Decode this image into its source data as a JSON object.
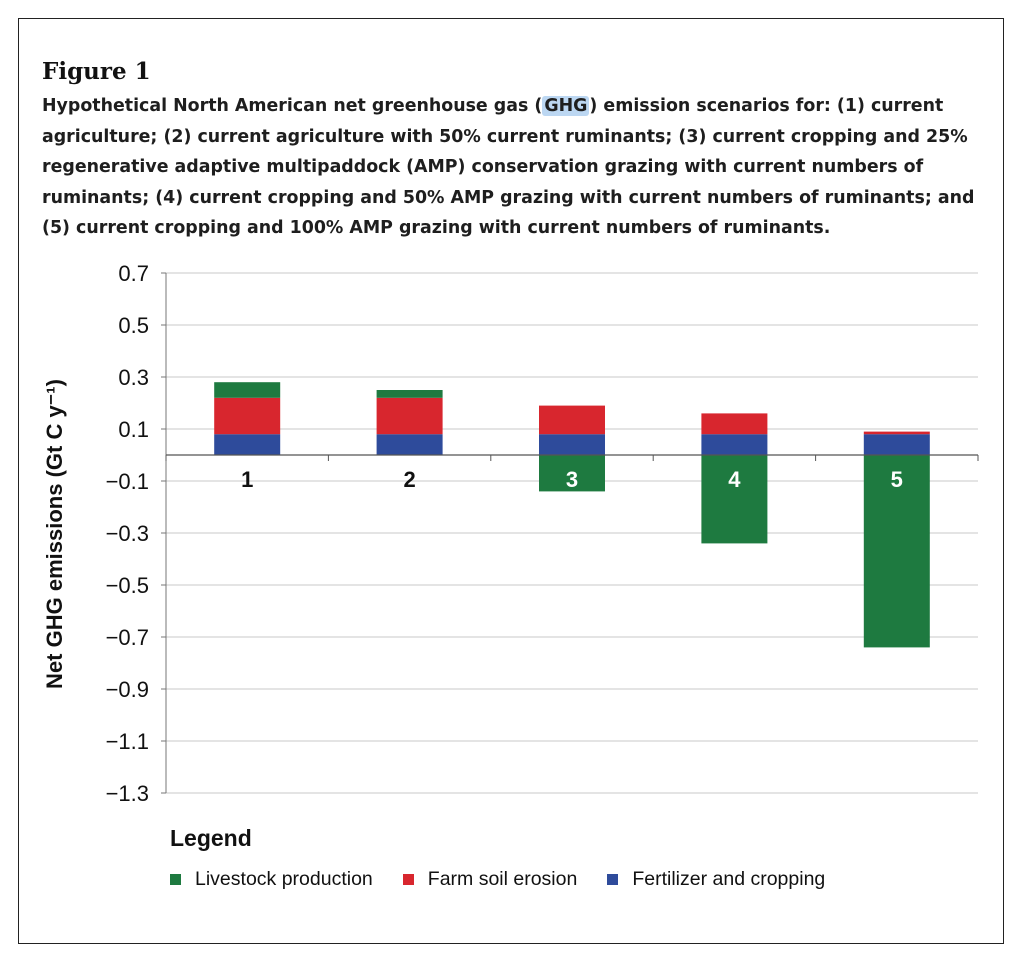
{
  "figure": {
    "label": "Figure 1",
    "caption_pre": "Hypothetical North American net greenhouse gas (",
    "caption_highlight": "GHG",
    "caption_post": ") emission scenarios for: (1) current agriculture; (2) current agriculture with 50% current ruminants; (3) current cropping and 25% regenerative adaptive multipaddock (AMP) conservation grazing with current numbers of ruminants; (4) current cropping and 50% AMP grazing with current numbers of ruminants; and (5) current cropping and 100% AMP grazing with current numbers of ruminants."
  },
  "legend": {
    "title": "Legend",
    "items": [
      {
        "label": "Livestock production",
        "color": "#1e7a40"
      },
      {
        "label": "Farm soil erosion",
        "color": "#d8262e"
      },
      {
        "label": "Fertilizer and cropping",
        "color": "#2e4b9b"
      }
    ]
  },
  "chart_data": {
    "type": "bar",
    "stacked": true,
    "categories": [
      "1",
      "2",
      "3",
      "4",
      "5"
    ],
    "ylabel": "Net GHG emissions (Gt C y⁻¹)",
    "ylim": [
      -1.3,
      0.7
    ],
    "yticks": [
      "0.7",
      "0.5",
      "0.3",
      "0.1",
      "−0.1",
      "−0.3",
      "−0.5",
      "−0.7",
      "−0.9",
      "−1.1",
      "−1.3"
    ],
    "grid": true,
    "series": [
      {
        "name": "Fertilizer and cropping",
        "color": "#2e4b9b",
        "values": [
          0.08,
          0.08,
          0.08,
          0.08,
          0.08
        ]
      },
      {
        "name": "Farm soil erosion",
        "color": "#d8262e",
        "values": [
          0.14,
          0.14,
          0.11,
          0.08,
          0.01
        ]
      },
      {
        "name": "Livestock production",
        "color": "#1e7a40",
        "values": [
          0.06,
          0.03,
          -0.14,
          -0.34,
          -0.74
        ]
      }
    ]
  }
}
